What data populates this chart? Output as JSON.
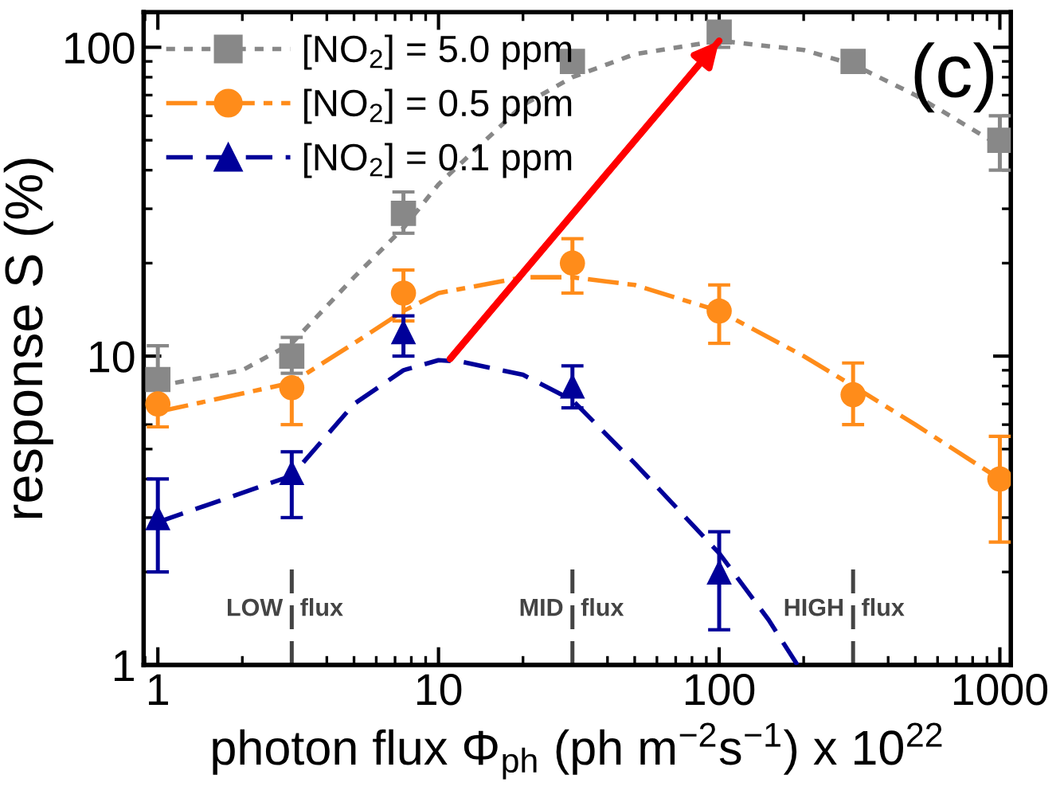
{
  "chart_data": {
    "type": "scatter",
    "xlabel": "photon flux Φ$_{ph}$ (ph m$^{−2}$s$^{−1}$) x 10$^{22}$",
    "ylabel": "response S (%)",
    "log": "xy",
    "xlim": [
      0.89,
      1094
    ],
    "ylim": [
      1,
      130
    ],
    "xticks": [
      1,
      10,
      100,
      1000
    ],
    "yticks": [
      1,
      10,
      100
    ],
    "grid": false,
    "legend": "top left",
    "annotations": [
      "(c)"
    ],
    "series": [
      {
        "name": "[NO$_{2}$] = 5.0 ppm",
        "color": "#888888",
        "marker": "square",
        "line_style": "dotted",
        "x": [
          1,
          3,
          7.5,
          30,
          100,
          300,
          1000
        ],
        "values": [
          8.4,
          10,
          29,
          90,
          112,
          90,
          50
        ],
        "errors": [
          [
            8.4,
            10.8
          ],
          [
            8.8,
            11.5
          ],
          [
            25,
            34
          ],
          [
            90,
            95
          ],
          [
            100,
            120
          ],
          [
            83,
            90
          ],
          [
            40,
            60
          ]
        ]
      },
      {
        "name": "[NO$_{2}$] = 0.5 ppm",
        "color": "#ff8c1a",
        "marker": "circle",
        "line_style": "dashdot",
        "x": [
          1,
          3,
          7.5,
          30,
          100,
          300,
          1000
        ],
        "values": [
          7.0,
          7.9,
          16,
          20,
          14,
          7.5,
          4.0
        ],
        "errors": [
          [
            5.9,
            7.0
          ],
          [
            6.0,
            7.9
          ],
          [
            13,
            19
          ],
          [
            16,
            24
          ],
          [
            11,
            17
          ],
          [
            6,
            9.5
          ],
          [
            2.5,
            5.5
          ]
        ]
      },
      {
        "name": "[NO$_{2}$] = 0.1 ppm",
        "color": "#000099",
        "marker": "triangle",
        "line_style": "dashed",
        "x": [
          1,
          3,
          7.5,
          30,
          100
        ],
        "values": [
          3.0,
          4.2,
          12,
          8,
          2.0
        ],
        "errors": [
          [
            2.0,
            4.0
          ],
          [
            3.0,
            4.9
          ],
          [
            10,
            13.5
          ],
          [
            6.8,
            9.3
          ],
          [
            1.3,
            2.7
          ]
        ]
      },
      {
        "type": "line",
        "color": "#888888",
        "line_style": "dotted",
        "x": [
          1,
          2,
          3,
          5,
          7.5,
          10,
          20,
          30,
          50,
          100,
          200,
          300,
          500,
          1000
        ],
        "values": [
          8,
          9,
          11,
          18,
          26,
          36,
          65,
          80,
          95,
          105,
          98,
          88,
          70,
          48
        ]
      },
      {
        "type": "line",
        "color": "#ff8c1a",
        "line_style": "dashdot",
        "x": [
          1,
          3,
          5,
          7.5,
          10,
          20,
          30,
          50,
          100,
          200,
          300,
          500,
          1000
        ],
        "values": [
          6.6,
          8.2,
          11,
          14,
          16,
          18,
          18,
          17,
          14,
          10,
          8,
          6,
          4
        ]
      },
      {
        "type": "line",
        "color": "#000099",
        "line_style": "dashed",
        "x": [
          1,
          3,
          5,
          7.5,
          10,
          12,
          20,
          30,
          50,
          100,
          150,
          190
        ],
        "values": [
          2.9,
          4.1,
          7,
          9,
          9.7,
          9.6,
          8.7,
          7.2,
          4.5,
          2.3,
          1.4,
          1.0
        ]
      },
      {
        "type": "line",
        "color": "#ff0000",
        "line_style": "solid",
        "x": [
          11,
          100
        ],
        "values": [
          9.8,
          105
        ]
      }
    ],
    "ref_lines": [
      {
        "axis": "x",
        "value": 3,
        "label": "LOW flux",
        "color": "#444444",
        "line_style": "dashed"
      },
      {
        "axis": "x",
        "value": 30,
        "label": "MID flux",
        "color": "#444444",
        "line_style": "dashed"
      },
      {
        "axis": "x",
        "value": 300,
        "label": "HIGH flux",
        "color": "#444444",
        "line_style": "dashed"
      }
    ]
  }
}
